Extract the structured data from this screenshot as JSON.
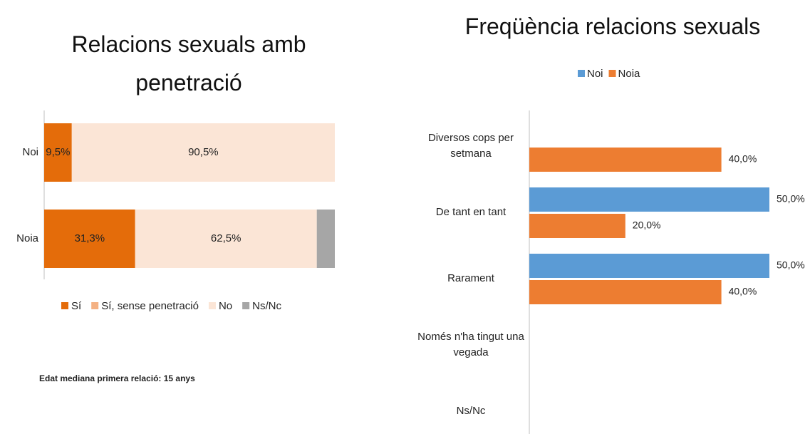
{
  "chart_data": [
    {
      "type": "stacked-bar-horizontal",
      "title": "Relacions sexuals amb penetració",
      "categories": [
        "Noi",
        "Noia"
      ],
      "series": [
        {
          "name": "Sí",
          "color": "#e46c0a",
          "values": [
            9.5,
            31.3
          ],
          "value_labels": [
            "9,5%",
            "31,3%"
          ]
        },
        {
          "name": "Sí, sense penetració",
          "color": "#f4b183",
          "values": [
            0,
            0
          ],
          "value_labels": [
            null,
            null
          ]
        },
        {
          "name": "No",
          "color": "#fbe5d6",
          "values": [
            90.5,
            62.5
          ],
          "value_labels": [
            "90,5%",
            "62,5%"
          ]
        },
        {
          "name": "Ns/Nc",
          "color": "#a6a6a6",
          "values": [
            0,
            6.2
          ],
          "value_labels": [
            null,
            null
          ]
        }
      ],
      "xlim": [
        0,
        100
      ],
      "legend": "bottom",
      "note": "Edat mediana primera relació: 15  anys"
    },
    {
      "type": "grouped-bar-horizontal",
      "title": "Freqüència relacions sexuals",
      "categories": [
        "Diversos cops per setmana",
        "De tant en tant",
        "Rarament",
        "Només n'ha tingut una vegada",
        "Ns/Nc"
      ],
      "series": [
        {
          "name": "Noi",
          "color": "#5b9bd5",
          "values": [
            null,
            50,
            50,
            null,
            null
          ],
          "value_labels": [
            null,
            "50,0%",
            "50,0%",
            null,
            null
          ]
        },
        {
          "name": "Noia",
          "color": "#ed7d31",
          "values": [
            40,
            20,
            40,
            null,
            null
          ],
          "value_labels": [
            "40,0%",
            "20,0%",
            "40,0%",
            null,
            null
          ]
        }
      ],
      "xlim": [
        0,
        50
      ],
      "legend": "top"
    }
  ]
}
